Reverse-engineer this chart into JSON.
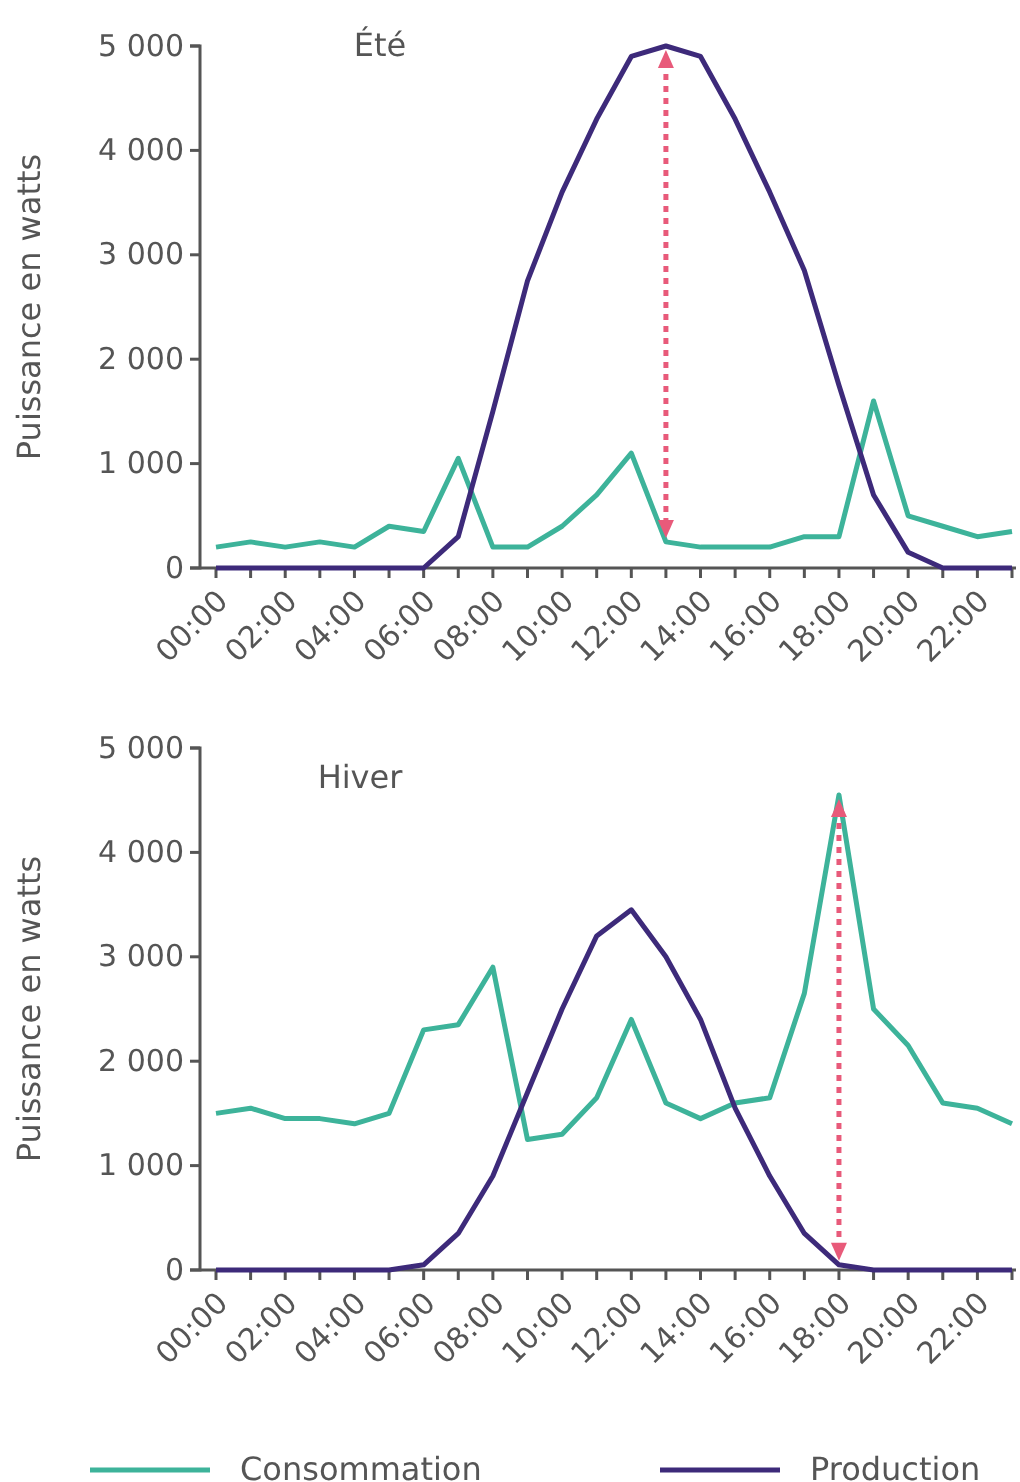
{
  "chart_data": [
    {
      "type": "line",
      "title": "Été",
      "ylabel": "Puissance en watts",
      "categories": [
        "00:00",
        null,
        "02:00",
        null,
        "04:00",
        null,
        "06:00",
        null,
        "08:00",
        null,
        "10:00",
        null,
        "12:00",
        null,
        "14:00",
        null,
        "16:00",
        null,
        "18:00",
        null,
        "20:00",
        null,
        "22:00",
        null
      ],
      "series": [
        {
          "color": "#3db39a",
          "values": [
            200,
            250,
            200,
            250,
            200,
            400,
            350,
            1050,
            200,
            200,
            400,
            700,
            1100,
            250,
            200,
            200,
            200,
            300,
            300,
            1600,
            500,
            400,
            300,
            350
          ]
        },
        {
          "color": "#3d2a7a",
          "values": [
            0,
            0,
            0,
            0,
            0,
            0,
            0,
            300,
            1500,
            2750,
            3600,
            4300,
            4900,
            5000,
            4900,
            4300,
            3600,
            2850,
            1750,
            700,
            150,
            0,
            0,
            0
          ]
        }
      ],
      "ylim": [
        0,
        5000
      ],
      "yticks": [
        {
          "value": 0,
          "label": "0"
        },
        {
          "value": 1000,
          "label": "1 000"
        },
        {
          "value": 2000,
          "label": "2 000"
        },
        {
          "value": 3000,
          "label": "3 000"
        },
        {
          "value": 4000,
          "label": "4 000"
        },
        {
          "value": 5000,
          "label": "5 000"
        }
      ]
    },
    {
      "type": "line",
      "title": "Hiver",
      "ylabel": "Puissance en watts",
      "categories": [
        "00:00",
        null,
        "02:00",
        null,
        "04:00",
        null,
        "06:00",
        null,
        "08:00",
        null,
        "10:00",
        null,
        "12:00",
        null,
        "14:00",
        null,
        "16:00",
        null,
        "18:00",
        null,
        "20:00",
        null,
        "22:00",
        null
      ],
      "series": [
        {
          "name": "Consommation",
          "color": "#3db39a",
          "values": [
            1500,
            1550,
            1450,
            1450,
            1400,
            1500,
            2300,
            2350,
            2900,
            1250,
            1300,
            1650,
            2400,
            1600,
            1450,
            1600,
            1650,
            2650,
            4550,
            2500,
            2150,
            1600,
            1550,
            1400
          ]
        },
        {
          "name": "Production",
          "color": "#3d2a7a",
          "values": [
            0,
            0,
            0,
            0,
            0,
            0,
            50,
            350,
            900,
            1700,
            2500,
            3200,
            3450,
            3000,
            2400,
            1550,
            900,
            350,
            50,
            0,
            0,
            0,
            0,
            0
          ]
        }
      ],
      "ylim": [
        0,
        5000
      ],
      "yticks": [
        {
          "value": 0,
          "label": "0"
        },
        {
          "value": 1000,
          "label": "1 000"
        },
        {
          "value": 2000,
          "label": "2 000"
        },
        {
          "value": 3000,
          "label": "3 000"
        },
        {
          "value": 4000,
          "label": "4 000"
        },
        {
          "value": 5000,
          "label": "5 000"
        }
      ],
      "legend": "bottom"
    }
  ]
}
